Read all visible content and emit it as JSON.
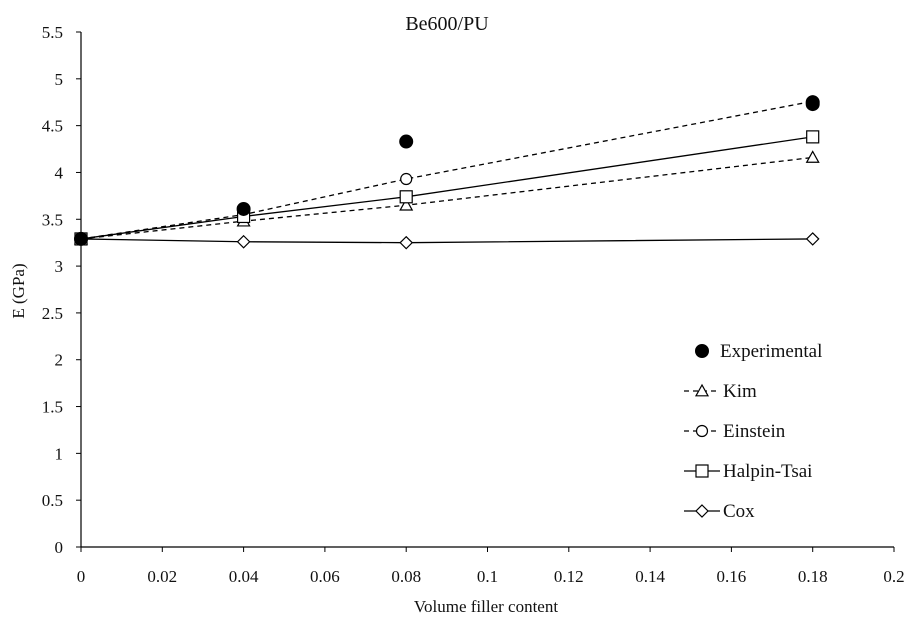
{
  "chart_data": {
    "type": "line",
    "title": "Be600/PU",
    "xlabel": "Volume filler content",
    "ylabel": "E (GPa)",
    "xlim": [
      0,
      0.2
    ],
    "ylim": [
      0,
      5.5
    ],
    "xticks": [
      "0",
      "0.02",
      "0.04",
      "0.06",
      "0.08",
      "0.1",
      "0.12",
      "0.14",
      "0.16",
      "0.18",
      "0.2"
    ],
    "yticks": [
      "0",
      "0.5",
      "1",
      "1.5",
      "2",
      "2.5",
      "3",
      "3.5",
      "4",
      "4.5",
      "5",
      "5.5"
    ],
    "grid": false,
    "legend_position": "right",
    "series": [
      {
        "name": "Experimental",
        "marker": "filled-circle",
        "line": "none",
        "x": [
          0,
          0.04,
          0.08,
          0.18,
          0.18
        ],
        "y": [
          3.29,
          3.61,
          4.33,
          4.73,
          4.75
        ]
      },
      {
        "name": "Kim",
        "marker": "open-triangle",
        "line": "dashed",
        "x": [
          0,
          0.04,
          0.08,
          0.18
        ],
        "y": [
          3.29,
          3.48,
          3.65,
          4.16
        ]
      },
      {
        "name": "Einstein",
        "marker": "open-circle",
        "line": "dashed",
        "x": [
          0,
          0.04,
          0.08,
          0.18
        ],
        "y": [
          3.29,
          3.55,
          3.93,
          4.76
        ]
      },
      {
        "name": "Halpin-Tsai",
        "marker": "open-square",
        "line": "solid",
        "x": [
          0,
          0.04,
          0.08,
          0.18
        ],
        "y": [
          3.29,
          3.53,
          3.74,
          4.38
        ]
      },
      {
        "name": "Cox",
        "marker": "open-diamond",
        "line": "solid",
        "x": [
          0,
          0.04,
          0.08,
          0.18
        ],
        "y": [
          3.29,
          3.26,
          3.25,
          3.29
        ]
      }
    ]
  }
}
